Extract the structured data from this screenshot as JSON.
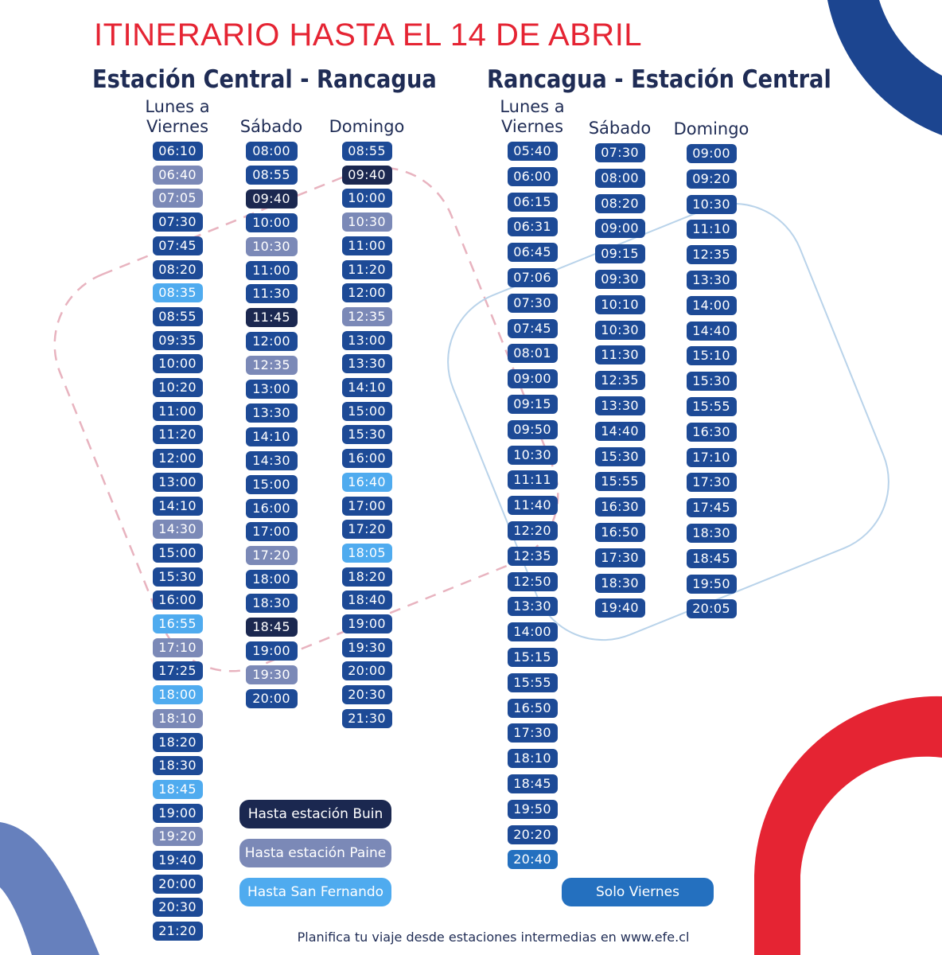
{
  "title": "ITINERARIO HASTA EL 14 DE ABRIL",
  "colors": {
    "normal": "#1d4a96",
    "buin": "#1b2850",
    "paine": "#7b89b7",
    "sanfernando": "#4fabef",
    "viernes": "#2470bf",
    "title_red": "#e52433"
  },
  "routes": [
    {
      "name": "Estación Central - Rancagua",
      "columns": [
        {
          "label": "Lunes a Viernes",
          "times": [
            {
              "t": "06:10",
              "c": "normal"
            },
            {
              "t": "06:40",
              "c": "paine"
            },
            {
              "t": "07:05",
              "c": "paine"
            },
            {
              "t": "07:30",
              "c": "normal"
            },
            {
              "t": "07:45",
              "c": "normal"
            },
            {
              "t": "08:20",
              "c": "normal"
            },
            {
              "t": "08:35",
              "c": "sanfernando"
            },
            {
              "t": "08:55",
              "c": "normal"
            },
            {
              "t": "09:35",
              "c": "normal"
            },
            {
              "t": "10:00",
              "c": "normal"
            },
            {
              "t": "10:20",
              "c": "normal"
            },
            {
              "t": "11:00",
              "c": "normal"
            },
            {
              "t": "11:20",
              "c": "normal"
            },
            {
              "t": "12:00",
              "c": "normal"
            },
            {
              "t": "13:00",
              "c": "normal"
            },
            {
              "t": "14:10",
              "c": "normal"
            },
            {
              "t": "14:30",
              "c": "paine"
            },
            {
              "t": "15:00",
              "c": "normal"
            },
            {
              "t": "15:30",
              "c": "normal"
            },
            {
              "t": "16:00",
              "c": "normal"
            },
            {
              "t": "16:55",
              "c": "sanfernando"
            },
            {
              "t": "17:10",
              "c": "paine"
            },
            {
              "t": "17:25",
              "c": "normal"
            },
            {
              "t": "18:00",
              "c": "sanfernando"
            },
            {
              "t": "18:10",
              "c": "paine"
            },
            {
              "t": "18:20",
              "c": "normal"
            },
            {
              "t": "18:30",
              "c": "normal"
            },
            {
              "t": "18:45",
              "c": "sanfernando"
            },
            {
              "t": "19:00",
              "c": "normal"
            },
            {
              "t": "19:20",
              "c": "paine"
            },
            {
              "t": "19:40",
              "c": "normal"
            },
            {
              "t": "20:00",
              "c": "normal"
            },
            {
              "t": "20:30",
              "c": "normal"
            },
            {
              "t": "21:20",
              "c": "normal"
            }
          ]
        },
        {
          "label": "Sábado",
          "times": [
            {
              "t": "08:00",
              "c": "normal"
            },
            {
              "t": "08:55",
              "c": "normal"
            },
            {
              "t": "09:40",
              "c": "buin"
            },
            {
              "t": "10:00",
              "c": "normal"
            },
            {
              "t": "10:30",
              "c": "paine"
            },
            {
              "t": "11:00",
              "c": "normal"
            },
            {
              "t": "11:30",
              "c": "normal"
            },
            {
              "t": "11:45",
              "c": "buin"
            },
            {
              "t": "12:00",
              "c": "normal"
            },
            {
              "t": "12:35",
              "c": "paine"
            },
            {
              "t": "13:00",
              "c": "normal"
            },
            {
              "t": "13:30",
              "c": "normal"
            },
            {
              "t": "14:10",
              "c": "normal"
            },
            {
              "t": "14:30",
              "c": "normal"
            },
            {
              "t": "15:00",
              "c": "normal"
            },
            {
              "t": "16:00",
              "c": "normal"
            },
            {
              "t": "17:00",
              "c": "normal"
            },
            {
              "t": "17:20",
              "c": "paine"
            },
            {
              "t": "18:00",
              "c": "normal"
            },
            {
              "t": "18:30",
              "c": "normal"
            },
            {
              "t": "18:45",
              "c": "buin"
            },
            {
              "t": "19:00",
              "c": "normal"
            },
            {
              "t": "19:30",
              "c": "paine"
            },
            {
              "t": "20:00",
              "c": "normal"
            }
          ]
        },
        {
          "label": "Domingo",
          "times": [
            {
              "t": "08:55",
              "c": "normal"
            },
            {
              "t": "09:40",
              "c": "buin"
            },
            {
              "t": "10:00",
              "c": "normal"
            },
            {
              "t": "10:30",
              "c": "paine"
            },
            {
              "t": "11:00",
              "c": "normal"
            },
            {
              "t": "11:20",
              "c": "normal"
            },
            {
              "t": "12:00",
              "c": "normal"
            },
            {
              "t": "12:35",
              "c": "paine"
            },
            {
              "t": "13:00",
              "c": "normal"
            },
            {
              "t": "13:30",
              "c": "normal"
            },
            {
              "t": "14:10",
              "c": "normal"
            },
            {
              "t": "15:00",
              "c": "normal"
            },
            {
              "t": "15:30",
              "c": "normal"
            },
            {
              "t": "16:00",
              "c": "normal"
            },
            {
              "t": "16:40",
              "c": "sanfernando"
            },
            {
              "t": "17:00",
              "c": "normal"
            },
            {
              "t": "17:20",
              "c": "normal"
            },
            {
              "t": "18:05",
              "c": "sanfernando"
            },
            {
              "t": "18:20",
              "c": "normal"
            },
            {
              "t": "18:40",
              "c": "normal"
            },
            {
              "t": "19:00",
              "c": "normal"
            },
            {
              "t": "19:30",
              "c": "normal"
            },
            {
              "t": "20:00",
              "c": "normal"
            },
            {
              "t": "20:30",
              "c": "normal"
            },
            {
              "t": "21:30",
              "c": "normal"
            }
          ]
        }
      ]
    },
    {
      "name": "Rancagua - Estación Central",
      "columns": [
        {
          "label": "Lunes a Viernes",
          "times": [
            {
              "t": "05:40",
              "c": "normal"
            },
            {
              "t": "06:00",
              "c": "normal"
            },
            {
              "t": "06:15",
              "c": "normal"
            },
            {
              "t": "06:31",
              "c": "normal"
            },
            {
              "t": "06:45",
              "c": "normal"
            },
            {
              "t": "07:06",
              "c": "normal"
            },
            {
              "t": "07:30",
              "c": "normal"
            },
            {
              "t": "07:45",
              "c": "normal"
            },
            {
              "t": "08:01",
              "c": "normal"
            },
            {
              "t": "09:00",
              "c": "normal"
            },
            {
              "t": "09:15",
              "c": "normal"
            },
            {
              "t": "09:50",
              "c": "normal"
            },
            {
              "t": "10:30",
              "c": "normal"
            },
            {
              "t": "11:11",
              "c": "normal"
            },
            {
              "t": "11:40",
              "c": "normal"
            },
            {
              "t": "12:20",
              "c": "normal"
            },
            {
              "t": "12:35",
              "c": "normal"
            },
            {
              "t": "12:50",
              "c": "normal"
            },
            {
              "t": "13:30",
              "c": "normal"
            },
            {
              "t": "14:00",
              "c": "normal"
            },
            {
              "t": "15:15",
              "c": "normal"
            },
            {
              "t": "15:55",
              "c": "normal"
            },
            {
              "t": "16:50",
              "c": "normal"
            },
            {
              "t": "17:30",
              "c": "normal"
            },
            {
              "t": "18:10",
              "c": "normal"
            },
            {
              "t": "18:45",
              "c": "normal"
            },
            {
              "t": "19:50",
              "c": "normal"
            },
            {
              "t": "20:20",
              "c": "normal"
            },
            {
              "t": "20:40",
              "c": "viernes"
            }
          ]
        },
        {
          "label": "Sábado",
          "times": [
            {
              "t": "07:30",
              "c": "normal"
            },
            {
              "t": "08:00",
              "c": "normal"
            },
            {
              "t": "08:20",
              "c": "normal"
            },
            {
              "t": "09:00",
              "c": "normal"
            },
            {
              "t": "09:15",
              "c": "normal"
            },
            {
              "t": "09:30",
              "c": "normal"
            },
            {
              "t": "10:10",
              "c": "normal"
            },
            {
              "t": "10:30",
              "c": "normal"
            },
            {
              "t": "11:30",
              "c": "normal"
            },
            {
              "t": "12:35",
              "c": "normal"
            },
            {
              "t": "13:30",
              "c": "normal"
            },
            {
              "t": "14:40",
              "c": "normal"
            },
            {
              "t": "15:30",
              "c": "normal"
            },
            {
              "t": "15:55",
              "c": "normal"
            },
            {
              "t": "16:30",
              "c": "normal"
            },
            {
              "t": "16:50",
              "c": "normal"
            },
            {
              "t": "17:30",
              "c": "normal"
            },
            {
              "t": "18:30",
              "c": "normal"
            },
            {
              "t": "19:40",
              "c": "normal"
            }
          ]
        },
        {
          "label": "Domingo",
          "times": [
            {
              "t": "09:00",
              "c": "normal"
            },
            {
              "t": "09:20",
              "c": "normal"
            },
            {
              "t": "10:30",
              "c": "normal"
            },
            {
              "t": "11:10",
              "c": "normal"
            },
            {
              "t": "12:35",
              "c": "normal"
            },
            {
              "t": "13:30",
              "c": "normal"
            },
            {
              "t": "14:00",
              "c": "normal"
            },
            {
              "t": "14:40",
              "c": "normal"
            },
            {
              "t": "15:10",
              "c": "normal"
            },
            {
              "t": "15:30",
              "c": "normal"
            },
            {
              "t": "15:55",
              "c": "normal"
            },
            {
              "t": "16:30",
              "c": "normal"
            },
            {
              "t": "17:10",
              "c": "normal"
            },
            {
              "t": "17:30",
              "c": "normal"
            },
            {
              "t": "17:45",
              "c": "normal"
            },
            {
              "t": "18:30",
              "c": "normal"
            },
            {
              "t": "18:45",
              "c": "normal"
            },
            {
              "t": "19:50",
              "c": "normal"
            },
            {
              "t": "20:05",
              "c": "normal"
            }
          ]
        }
      ]
    }
  ],
  "legend": {
    "buin": "Hasta estación Buin",
    "paine": "Hasta estación Paine",
    "sanfernando": "Hasta San Fernando",
    "viernes": "Solo Viernes"
  },
  "footer": "Planifica tu viaje desde estaciones intermedias en www.efe.cl"
}
